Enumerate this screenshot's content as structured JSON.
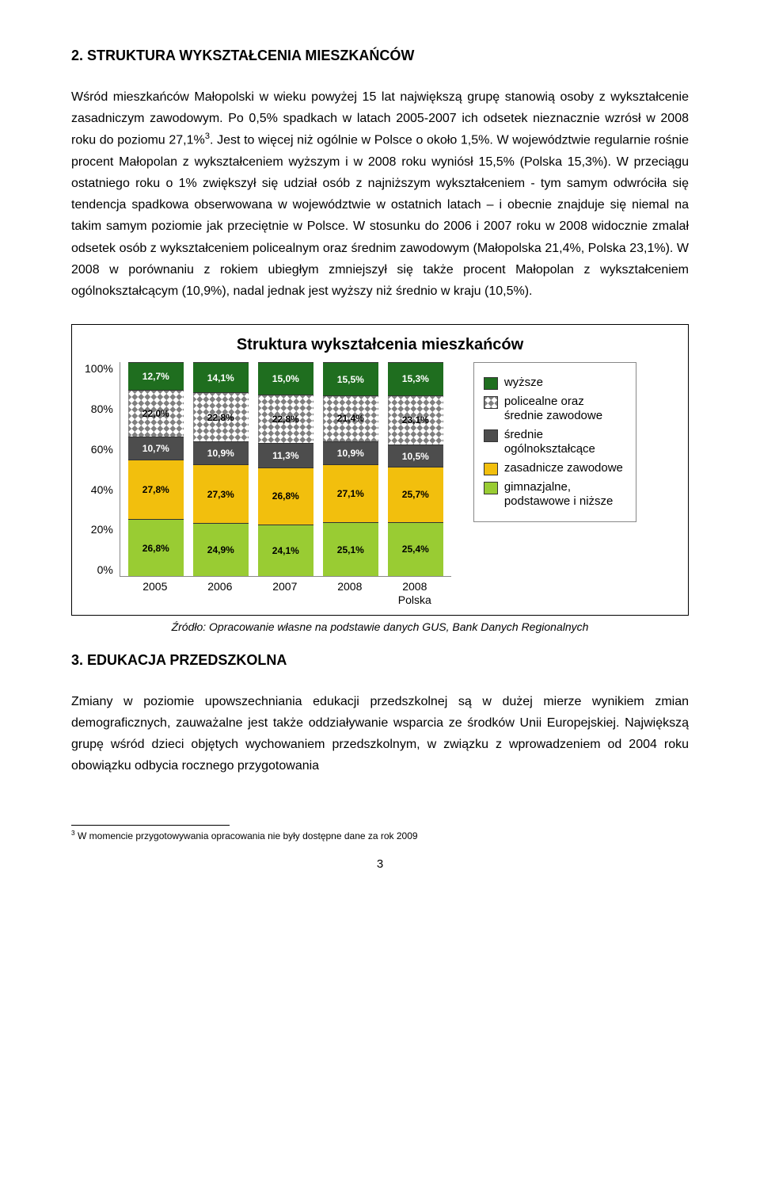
{
  "heading1": "2. STRUKTURA WYKSZTAŁCENIA MIESZKAŃCÓW",
  "para1_html": "Wśród mieszkańców Małopolski w wieku powyżej 15 lat największą grupę stanowią osoby z wykształcenie zasadniczym zawodowym. Po 0,5% spadkach w latach 2005-2007 ich odsetek nieznacznie wzrósł w 2008 roku do poziomu 27,1%<sup>3</sup>. Jest to więcej niż ogólnie w Polsce o około 1,5%. W województwie regularnie rośnie procent Małopolan z wykształceniem wyższym i w 2008 roku wyniósł 15,5% (Polska 15,3%). W przeciągu ostatniego roku o 1% zwiększył się udział osób z najniższym wykształceniem - tym samym odwróciła się tendencja spadkowa obserwowana w województwie w ostatnich latach – i obecnie znajduje się niemal na takim samym poziomie jak przeciętnie w Polsce.  W stosunku do 2006 i 2007 roku  w 2008 widocznie zmalał odsetek osób z wykształceniem policealnym oraz średnim zawodowym (Małopolska 21,4%, Polska 23,1%). W 2008 w porównaniu z rokiem ubiegłym zmniejszył się także procent Małopolan z wykształceniem ogólnokształcącym (10,9%), nadal jednak jest wyższy niż średnio w kraju (10,5%).",
  "chart": {
    "title": "Struktura wykształcenia mieszkańców",
    "ylabels": [
      "100%",
      "80%",
      "60%",
      "40%",
      "20%",
      "0%"
    ],
    "categories": [
      "2005",
      "2006",
      "2007",
      "2008",
      "2008\nPolska"
    ],
    "series": [
      {
        "key": "gimn",
        "label": "gimnazjalne, podstawowe i niższe",
        "color": "#99cc33",
        "hatch": false
      },
      {
        "key": "zasad",
        "label": "zasadnicze zawodowe",
        "color": "#f2bf0d",
        "hatch": false
      },
      {
        "key": "ogol",
        "label": "średnie ogólnokształcące",
        "color": "#4d4d4d",
        "hatch": false,
        "text": "#fff"
      },
      {
        "key": "polic",
        "label": "policealne oraz średnie zawodowe",
        "color": "#ffffff",
        "hatch": true
      },
      {
        "key": "wyz",
        "label": "wyższe",
        "color": "#1f6e1f",
        "hatch": false,
        "text": "#fff"
      }
    ],
    "data": {
      "2005": {
        "gimn": "26,8%",
        "zasad": "27,8%",
        "ogol": "10,7%",
        "polic": "22,0%",
        "wyz": "12,7%"
      },
      "2006": {
        "gimn": "24,9%",
        "zasad": "27,3%",
        "ogol": "10,9%",
        "polic": "22,8%",
        "wyz": "14,1%"
      },
      "2007": {
        "gimn": "24,1%",
        "zasad": "26,8%",
        "ogol": "11,3%",
        "polic": "22,8%",
        "wyz": "15,0%"
      },
      "2008": {
        "gimn": "25,1%",
        "zasad": "27,1%",
        "ogol": "10,9%",
        "polic": "21,4%",
        "wyz": "15,5%"
      },
      "2008 Polska": {
        "gimn": "25,4%",
        "zasad": "25,7%",
        "ogol": "10,5%",
        "polic": "23,1%",
        "wyz": "15,3%"
      }
    },
    "values_numeric": {
      "2005": [
        26.8,
        27.8,
        10.7,
        22.0,
        12.7
      ],
      "2006": [
        24.9,
        27.3,
        10.9,
        22.8,
        14.1
      ],
      "2007": [
        24.1,
        26.8,
        11.3,
        22.8,
        15.0
      ],
      "2008": [
        25.1,
        27.1,
        10.9,
        21.4,
        15.5
      ],
      "2008 Polska": [
        25.4,
        25.7,
        10.5,
        23.1,
        15.3
      ]
    },
    "legend_order": [
      "wyz",
      "polic",
      "ogol",
      "zasad",
      "gimn"
    ]
  },
  "source": "Źródło: Opracowanie własne na podstawie danych GUS, Bank Danych Regionalnych",
  "heading2": "3. EDUKACJA PRZEDSZKOLNA",
  "para2": "Zmiany w poziomie upowszechniania edukacji przedszkolnej są w dużej mierze wynikiem zmian demograficznych, zauważalne jest także oddziaływanie wsparcia ze środków Unii Europejskiej. Największą grupę wśród dzieci objętych wychowaniem przedszkolnym, w związku z wprowadzeniem od 2004 roku obowiązku odbycia rocznego przygotowania",
  "footnote_html": "<sup>3</sup> W momencie przygotowywania opracowania nie były dostępne dane za rok 2009",
  "pagenum": "3"
}
